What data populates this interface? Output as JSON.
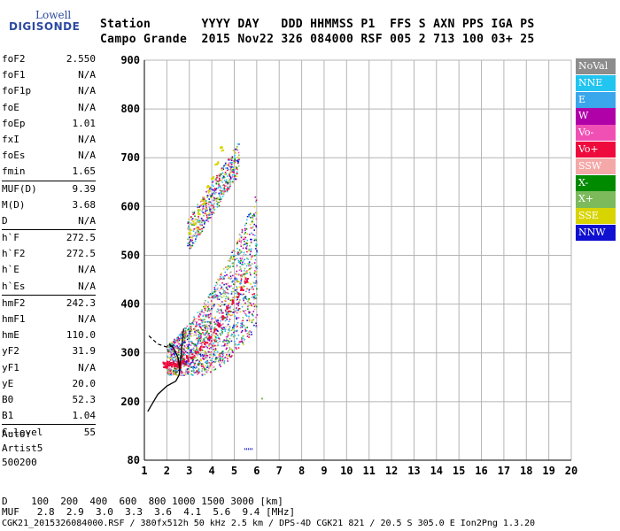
{
  "logo": {
    "line1": "Lowell",
    "line2": "DIGISONDE"
  },
  "header": {
    "labels": "Station       YYYY DAY   DDD HHMMSS P1  FFS S AXN PPS IGA PS",
    "values": "Campo Grande  2015 Nov22 326 084000 RSF 005 2 713 100 03+ 25"
  },
  "params": [
    {
      "k": "foF2",
      "v": "2.550"
    },
    {
      "k": "foF1",
      "v": "N/A"
    },
    {
      "k": "foF1p",
      "v": "N/A"
    },
    {
      "k": "foE",
      "v": "N/A"
    },
    {
      "k": "foEp",
      "v": "1.01"
    },
    {
      "k": "fxI",
      "v": "N/A"
    },
    {
      "k": "foEs",
      "v": "N/A"
    },
    {
      "k": "fmin",
      "v": "1.65"
    },
    {
      "k": "MUF(D)",
      "v": "9.39"
    },
    {
      "k": "M(D)",
      "v": "3.68"
    },
    {
      "k": "D",
      "v": "N/A"
    },
    {
      "k": "h`F",
      "v": "272.5"
    },
    {
      "k": "h`F2",
      "v": "272.5"
    },
    {
      "k": "h`E",
      "v": "N/A"
    },
    {
      "k": "h`Es",
      "v": "N/A"
    },
    {
      "k": "hmF2",
      "v": "242.3"
    },
    {
      "k": "hmF1",
      "v": "N/A"
    },
    {
      "k": "hmE",
      "v": "110.0"
    },
    {
      "k": "yF2",
      "v": "31.9"
    },
    {
      "k": "yF1",
      "v": "N/A"
    },
    {
      "k": "yE",
      "v": "20.0"
    },
    {
      "k": "B0",
      "v": "52.3"
    },
    {
      "k": "B1",
      "v": "1.04"
    },
    {
      "k": "C-level",
      "v": "55"
    }
  ],
  "auto": {
    "l1": "Auto:",
    "l2": "Artist5",
    "l3": "500200"
  },
  "legend": [
    {
      "label": "NoVal",
      "color": "#8c8c8c"
    },
    {
      "label": "NNE",
      "color": "#22c4f0"
    },
    {
      "label": "E",
      "color": "#3aa6ec"
    },
    {
      "label": "W",
      "color": "#b000a8"
    },
    {
      "label": "Vo-",
      "color": "#f050b4"
    },
    {
      "label": "Vo+",
      "color": "#ee0a3c"
    },
    {
      "label": "SSW",
      "color": "#f4a8a8"
    },
    {
      "label": "X-",
      "color": "#008a00"
    },
    {
      "label": "X+",
      "color": "#7cba5c"
    },
    {
      "label": "SSE",
      "color": "#d8d400"
    },
    {
      "label": "NNW",
      "color": "#1010d0"
    }
  ],
  "bottom": {
    "d_row": "D    100  200  400  600  800 1000 1500 3000 [km]",
    "muf_row": "MUF   2.8  2.9  3.0  3.3  3.6  4.1  5.6  9.4 [MHz]",
    "footer": "CGK21_2015326084000.RSF / 380fx512h 50 kHz 2.5 km / DPS-4D CGK21 821 / 20.5 S 305.0 E Ion2Png 1.3.20"
  },
  "chart_data": {
    "type": "scatter",
    "xlim": [
      1,
      20
    ],
    "ylim": [
      80,
      900
    ],
    "xticks": [
      1,
      2,
      3,
      4,
      5,
      6,
      7,
      8,
      9,
      10,
      11,
      12,
      13,
      14,
      15,
      16,
      17,
      18,
      19,
      20
    ],
    "yticks": [
      80,
      200,
      300,
      400,
      500,
      600,
      700,
      800,
      900
    ],
    "grid": true,
    "xlabel": "",
    "ylabel": "",
    "series": [
      {
        "name": "F-trace",
        "color": "#ee0a3c",
        "points": [
          [
            1.9,
            275
          ],
          [
            2.1,
            278
          ],
          [
            2.3,
            280
          ],
          [
            2.5,
            282
          ],
          [
            2.7,
            285
          ],
          [
            2.9,
            290
          ],
          [
            3.1,
            295
          ],
          [
            3.3,
            300
          ],
          [
            3.5,
            310
          ],
          [
            3.7,
            320
          ],
          [
            3.9,
            330
          ],
          [
            4.1,
            345
          ],
          [
            4.3,
            360
          ],
          [
            4.5,
            375
          ],
          [
            4.7,
            390
          ],
          [
            4.9,
            405
          ],
          [
            5.1,
            420
          ],
          [
            5.3,
            435
          ],
          [
            5.5,
            450
          ]
        ]
      },
      {
        "name": "2F-trace",
        "color": "#d8d400",
        "points": [
          [
            3.0,
            550
          ],
          [
            3.2,
            570
          ],
          [
            3.4,
            590
          ],
          [
            3.6,
            610
          ],
          [
            3.8,
            640
          ],
          [
            4.0,
            660
          ],
          [
            4.2,
            690
          ],
          [
            4.4,
            720
          ]
        ]
      }
    ],
    "profile": {
      "color": "#000000",
      "points": [
        [
          1.15,
          180
        ],
        [
          1.6,
          215
        ],
        [
          2.0,
          232
        ],
        [
          2.4,
          242
        ],
        [
          2.55,
          255
        ],
        [
          2.58,
          265
        ],
        [
          2.5,
          290
        ],
        [
          2.3,
          310
        ],
        [
          2.1,
          318
        ]
      ]
    },
    "profile_dashed": {
      "color": "#000000",
      "points": [
        [
          1.2,
          335
        ],
        [
          1.6,
          318
        ],
        [
          2.0,
          312
        ],
        [
          2.3,
          315
        ]
      ]
    },
    "profile_upper": {
      "color": "#000000",
      "points": [
        [
          2.55,
          255
        ],
        [
          2.62,
          290
        ],
        [
          2.7,
          330
        ],
        [
          2.75,
          350
        ]
      ]
    }
  }
}
